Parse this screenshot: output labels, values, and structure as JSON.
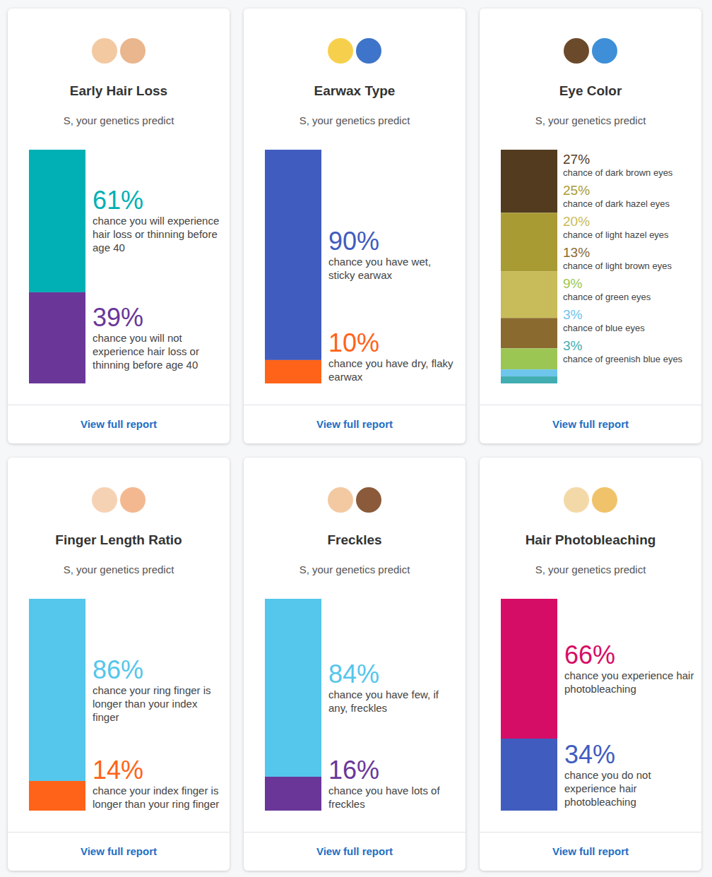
{
  "chart_data": [
    {
      "type": "bar",
      "stacked": true,
      "title": "Early Hair Loss",
      "subtitle": "S, your genetics predict",
      "caption": "View full report",
      "categories": [
        null
      ],
      "ylim": [
        0,
        100
      ],
      "yticks": [],
      "tick_labels": false,
      "data_labels": true,
      "series": [
        {
          "name": "chance you will experience hair loss or thinning before age 40",
          "color": "#00b0b4",
          "values": [
            61
          ],
          "value_labels": [
            "61%"
          ]
        },
        {
          "name": "chance you will not experience hair loss or thinning before age 40",
          "color": "#6a3799",
          "values": [
            39
          ],
          "value_labels": [
            "39%"
          ]
        }
      ]
    },
    {
      "type": "bar",
      "stacked": true,
      "title": "Earwax Type",
      "subtitle": "S, your genetics predict",
      "caption": "View full report",
      "categories": [
        null
      ],
      "ylim": [
        0,
        100
      ],
      "yticks": [],
      "tick_labels": false,
      "data_labels": true,
      "series": [
        {
          "name": "chance you have wet, sticky earwax",
          "color": "#415cbf",
          "values": [
            90
          ],
          "value_labels": [
            "90%"
          ]
        },
        {
          "name": "chance you have dry, flaky earwax",
          "color": "#ff6319",
          "values": [
            10
          ],
          "value_labels": [
            "10%"
          ]
        }
      ]
    },
    {
      "type": "bar",
      "stacked": true,
      "title": "Eye Color",
      "subtitle": "S, your genetics predict",
      "caption": "View full report",
      "categories": [
        null
      ],
      "ylim": [
        0,
        100
      ],
      "yticks": [],
      "tick_labels": false,
      "data_labels": true,
      "series": [
        {
          "name": "chance of dark brown eyes",
          "color": "#523b1f",
          "values": [
            27
          ],
          "value_labels": [
            "27%"
          ]
        },
        {
          "name": "chance of dark hazel eyes",
          "color": "#a99b33",
          "values": [
            25
          ],
          "value_labels": [
            "25%"
          ]
        },
        {
          "name": "chance of light hazel eyes",
          "color": "#c8bb59",
          "values": [
            20
          ],
          "value_labels": [
            "20%"
          ]
        },
        {
          "name": "chance of light brown eyes",
          "color": "#8b6a30",
          "values": [
            13
          ],
          "value_labels": [
            "13%"
          ]
        },
        {
          "name": "chance of green eyes",
          "color": "#9cc653",
          "values": [
            9
          ],
          "value_labels": [
            "9%"
          ]
        },
        {
          "name": "chance of blue eyes",
          "color": "#6dc5ec",
          "values": [
            3
          ],
          "value_labels": [
            "3%"
          ]
        },
        {
          "name": "chance of greenish blue eyes",
          "color": "#42adb0",
          "values": [
            3
          ],
          "value_labels": [
            "3%"
          ]
        }
      ]
    },
    {
      "type": "bar",
      "stacked": true,
      "title": "Finger Length Ratio",
      "subtitle": "S, your genetics predict",
      "caption": "View full report",
      "categories": [
        null
      ],
      "ylim": [
        0,
        100
      ],
      "yticks": [],
      "tick_labels": false,
      "data_labels": true,
      "series": [
        {
          "name": "chance your ring finger is longer than your index finger",
          "color": "#55c6ec",
          "values": [
            86
          ],
          "value_labels": [
            "86%"
          ]
        },
        {
          "name": "chance your index finger is longer than your ring finger",
          "color": "#ff6319",
          "values": [
            14
          ],
          "value_labels": [
            "14%"
          ]
        }
      ]
    },
    {
      "type": "bar",
      "stacked": true,
      "title": "Freckles",
      "subtitle": "S, your genetics predict",
      "caption": "View full report",
      "categories": [
        null
      ],
      "ylim": [
        0,
        100
      ],
      "yticks": [],
      "tick_labels": false,
      "data_labels": true,
      "series": [
        {
          "name": "chance you have few, if any, freckles",
          "color": "#55c6ec",
          "values": [
            84
          ],
          "value_labels": [
            "84%"
          ]
        },
        {
          "name": "chance you have lots of freckles",
          "color": "#6a3799",
          "values": [
            16
          ],
          "value_labels": [
            "16%"
          ]
        }
      ]
    },
    {
      "type": "bar",
      "stacked": true,
      "title": "Hair Photobleaching",
      "subtitle": "S, your genetics predict",
      "caption": "View full report",
      "categories": [
        null
      ],
      "ylim": [
        0,
        100
      ],
      "yticks": [],
      "tick_labels": false,
      "data_labels": true,
      "series": [
        {
          "name": "chance you experience hair photobleaching",
          "color": "#d60d66",
          "values": [
            66
          ],
          "value_labels": [
            "66%"
          ]
        },
        {
          "name": "chance you do not experience hair photobleaching",
          "color": "#415cbf",
          "values": [
            34
          ],
          "value_labels": [
            "34%"
          ]
        }
      ]
    }
  ]
}
